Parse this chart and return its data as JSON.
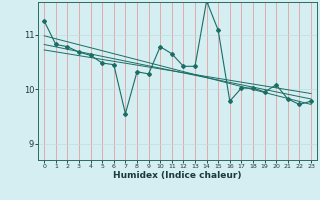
{
  "xlabel": "Humidex (Indice chaleur)",
  "xlim": [
    -0.5,
    23.5
  ],
  "ylim": [
    8.7,
    11.6
  ],
  "yticks": [
    9,
    10,
    11
  ],
  "xticks": [
    0,
    1,
    2,
    3,
    4,
    5,
    6,
    7,
    8,
    9,
    10,
    11,
    12,
    13,
    14,
    15,
    16,
    17,
    18,
    19,
    20,
    21,
    22,
    23
  ],
  "background_color": "#d4eef2",
  "vgrid_color": "#e89090",
  "hgrid_color": "#c0dde0",
  "line_color": "#1a6e64",
  "main_line": {
    "x": [
      0,
      1,
      2,
      3,
      4,
      5,
      6,
      7,
      8,
      9,
      10,
      11,
      12,
      13,
      14,
      15,
      16,
      17,
      18,
      19,
      20,
      21,
      22,
      23
    ],
    "y": [
      11.25,
      10.82,
      10.78,
      10.68,
      10.62,
      10.48,
      10.45,
      9.55,
      10.32,
      10.28,
      10.78,
      10.65,
      10.42,
      10.42,
      11.62,
      11.08,
      9.78,
      10.02,
      10.02,
      9.95,
      10.08,
      9.82,
      9.72,
      9.78
    ]
  },
  "trend_lines": [
    {
      "x": [
        0,
        23
      ],
      "y": [
        10.98,
        9.72
      ]
    },
    {
      "x": [
        0,
        23
      ],
      "y": [
        10.82,
        9.82
      ]
    },
    {
      "x": [
        0,
        23
      ],
      "y": [
        10.72,
        9.92
      ]
    }
  ]
}
